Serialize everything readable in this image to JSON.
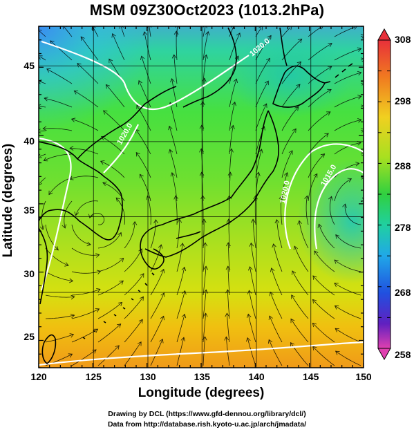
{
  "title": "MSM 09Z30Oct2023 (1013.2hPa)",
  "x_axis": {
    "label": "Longitude (degrees)",
    "range": [
      120,
      150
    ],
    "ticks": [
      "120",
      "125",
      "130",
      "135",
      "140",
      "145",
      "150"
    ]
  },
  "y_axis": {
    "label": "Latitude  (degrees)",
    "range": [
      22.5,
      47.5
    ],
    "ticks": [
      "25",
      "30",
      "35",
      "40",
      "45"
    ]
  },
  "colorbar": {
    "min": 258,
    "max": 308,
    "ticks": [
      "308",
      "298",
      "288",
      "278",
      "268",
      "258"
    ]
  },
  "contour_labels": [
    "1020.0",
    "1020.0",
    "1015.0",
    "1020.0"
  ],
  "credits": {
    "line1": "Drawing by DCL (https://www.gfd-dennou.org/library/dcl/)",
    "line2": "Data from http://database.rish.kyoto-u.ac.jp/arch/jmadata/"
  },
  "colors": {
    "background": "#ffffff",
    "frame": "#000000",
    "contour": "#ffffff",
    "coast": "#000000"
  }
}
